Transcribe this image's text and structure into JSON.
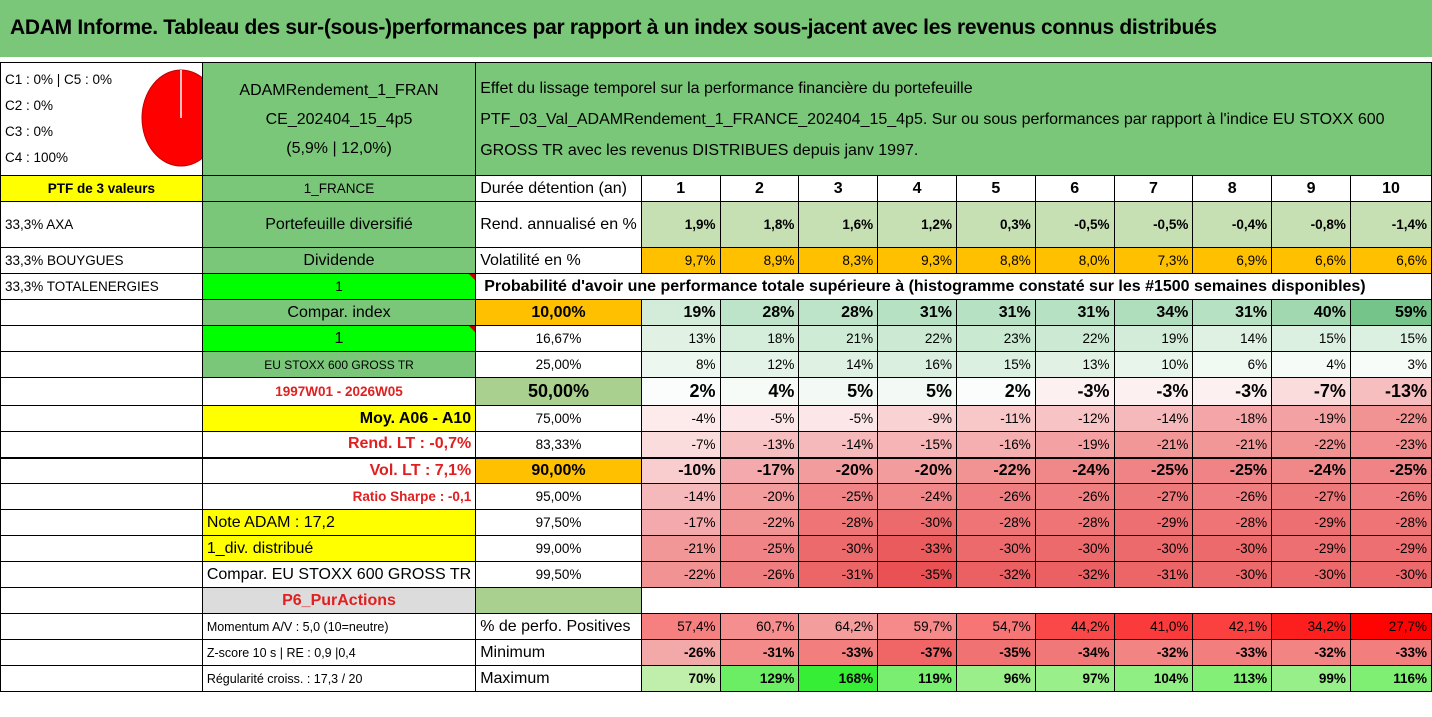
{
  "title": "ADAM Informe. Tableau des sur-(sous-)performances par rapport à un index sous-jacent avec les revenus connus distribués",
  "summary": {
    "c_lines": [
      "C1 : 0% | C5 : 0%",
      "C2 : 0%",
      "C3 : 0%",
      "C4 : 100%"
    ],
    "pie_color": "#ff0000",
    "portfolio_name": [
      "ADAMRendement_1_FRAN",
      "CE_202404_15_4p5",
      "(5,9% | 12,0%)"
    ],
    "description": [
      "Effet du lissage temporel sur la performance financière du portefeuille",
      "PTF_03_Val_ADAMRendement_1_FRANCE_202404_15_4p5. Sur ou sous performances par rapport à l'indice EU STOXX 600",
      "GROSS TR avec les revenus DISTRIBUES depuis janv 1997."
    ]
  },
  "left_col": {
    "ptf_header": "PTF de 3 valeurs",
    "holdings": [
      "33,3% AXA",
      "33,3% BOUYGUES",
      "33,3% TOTALENERGIES"
    ]
  },
  "mid_col": {
    "country": "1_FRANCE",
    "portfolio_type": "Portefeuille diversifié",
    "dividend_label": "Dividende",
    "dividend_value": "1",
    "compar_index": "Compar. index",
    "compar_value": "1",
    "index_name": "EU STOXX 600 GROSS TR",
    "period": "1997W01 - 2026W05",
    "moy": "Moy. A06 - A10",
    "rend_lt": "Rend. LT : -0,7%",
    "vol_lt": "Vol. LT : 7,1%",
    "sharpe": "Ratio Sharpe : -0,1",
    "note": "Note ADAM : 17,2",
    "div": "1_div. distribué",
    "compar_full": "Compar. EU STOXX 600 GROSS TR",
    "pur": "P6_PurActions",
    "momentum": "Momentum A/V : 5,0 (10=neutre)",
    "zscore": "Z-score 10 s | RE : 0,9 |0,4",
    "regularite": "Régularité croiss. : 17,3 / 20"
  },
  "table": {
    "duree_label": "Durée détention (an)",
    "years": [
      "1",
      "2",
      "3",
      "4",
      "5",
      "6",
      "7",
      "8",
      "9",
      "10"
    ],
    "rend_label": "Rend. annualisé en %",
    "rend": [
      "1,9%",
      "1,8%",
      "1,6%",
      "1,2%",
      "0,3%",
      "-0,5%",
      "-0,5%",
      "-0,4%",
      "-0,8%",
      "-1,4%"
    ],
    "vol_label": "Volatilité en %",
    "vol": [
      "9,7%",
      "8,9%",
      "8,3%",
      "9,3%",
      "8,8%",
      "8,0%",
      "7,3%",
      "6,9%",
      "6,6%",
      "6,6%"
    ],
    "prob_label": "Probabilité d'avoir une performance totale supérieure à (histogramme constaté sur les #1500 semaines disponibles)",
    "prob_rows": [
      {
        "p": "10,00%",
        "v": [
          "19%",
          "28%",
          "28%",
          "31%",
          "31%",
          "31%",
          "34%",
          "31%",
          "40%",
          "59%"
        ]
      },
      {
        "p": "16,67%",
        "v": [
          "13%",
          "18%",
          "21%",
          "22%",
          "23%",
          "22%",
          "19%",
          "14%",
          "15%",
          "15%"
        ]
      },
      {
        "p": "25,00%",
        "v": [
          "8%",
          "12%",
          "14%",
          "16%",
          "15%",
          "13%",
          "10%",
          "6%",
          "4%",
          "3%"
        ]
      },
      {
        "p": "50,00%",
        "v": [
          "2%",
          "4%",
          "5%",
          "5%",
          "2%",
          "-3%",
          "-3%",
          "-3%",
          "-7%",
          "-13%"
        ]
      },
      {
        "p": "75,00%",
        "v": [
          "-4%",
          "-5%",
          "-5%",
          "-9%",
          "-11%",
          "-12%",
          "-14%",
          "-18%",
          "-19%",
          "-22%"
        ]
      },
      {
        "p": "83,33%",
        "v": [
          "-7%",
          "-13%",
          "-14%",
          "-15%",
          "-16%",
          "-19%",
          "-21%",
          "-21%",
          "-22%",
          "-23%"
        ]
      },
      {
        "p": "90,00%",
        "v": [
          "-10%",
          "-17%",
          "-20%",
          "-20%",
          "-22%",
          "-24%",
          "-25%",
          "-25%",
          "-24%",
          "-25%"
        ]
      },
      {
        "p": "95,00%",
        "v": [
          "-14%",
          "-20%",
          "-25%",
          "-24%",
          "-26%",
          "-26%",
          "-27%",
          "-26%",
          "-27%",
          "-26%"
        ]
      },
      {
        "p": "97,50%",
        "v": [
          "-17%",
          "-22%",
          "-28%",
          "-30%",
          "-28%",
          "-28%",
          "-29%",
          "-28%",
          "-29%",
          "-28%"
        ]
      },
      {
        "p": "99,00%",
        "v": [
          "-21%",
          "-25%",
          "-30%",
          "-33%",
          "-30%",
          "-30%",
          "-30%",
          "-30%",
          "-29%",
          "-29%"
        ]
      },
      {
        "p": "99,50%",
        "v": [
          "-22%",
          "-26%",
          "-31%",
          "-35%",
          "-32%",
          "-32%",
          "-31%",
          "-30%",
          "-30%",
          "-30%"
        ]
      }
    ],
    "pos_label": "% de perfo. Positives",
    "pos": [
      "57,4%",
      "60,7%",
      "64,2%",
      "59,7%",
      "54,7%",
      "44,2%",
      "41,0%",
      "42,1%",
      "34,2%",
      "27,7%"
    ],
    "min_label": "Minimum",
    "min": [
      "-26%",
      "-31%",
      "-33%",
      "-37%",
      "-35%",
      "-34%",
      "-32%",
      "-33%",
      "-32%",
      "-33%"
    ],
    "max_label": "Maximum",
    "max": [
      "70%",
      "129%",
      "168%",
      "119%",
      "96%",
      "97%",
      "104%",
      "113%",
      "99%",
      "116%"
    ]
  }
}
